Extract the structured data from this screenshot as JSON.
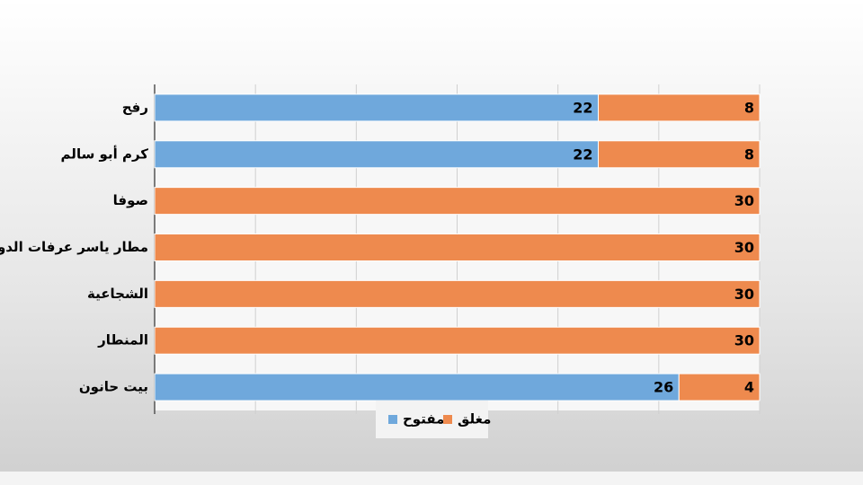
{
  "chart_data": {
    "type": "stacked-bar-horizontal",
    "categories": [
      "رفح",
      "كرم أبو سالم",
      "صوفا",
      "مطار ياسر عرفات الدولي",
      "الشجاعية",
      "المنطار",
      "بيت حانون"
    ],
    "series": [
      {
        "name": "مفتوح",
        "color": "#6fa8dc",
        "values": [
          22,
          22,
          null,
          null,
          null,
          null,
          26
        ]
      },
      {
        "name": "مغلق",
        "color": "#ee8a4e",
        "values": [
          8,
          8,
          30,
          30,
          30,
          30,
          4
        ]
      }
    ],
    "xlim": [
      0,
      30
    ],
    "xticks": [
      0,
      5,
      10,
      15,
      20,
      25,
      30
    ],
    "grid": true
  }
}
